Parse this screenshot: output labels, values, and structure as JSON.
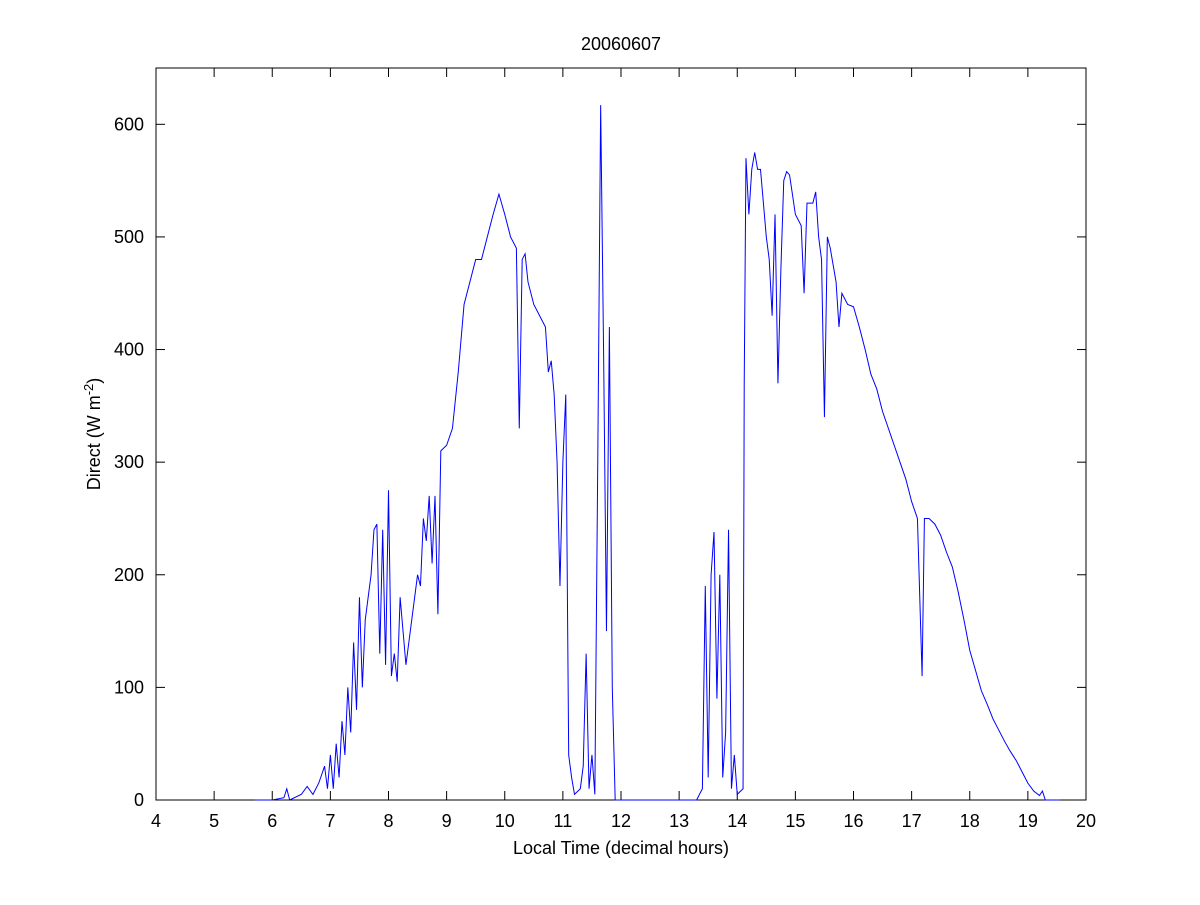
{
  "chart_data": {
    "type": "line",
    "title": "20060607",
    "xlabel": "Local Time (decimal hours)",
    "ylabel": "Direct (W m",
    "ylabel_sup": "-2",
    "ylabel_end": ")",
    "xlim": [
      4,
      20
    ],
    "xticks": [
      4,
      5,
      6,
      7,
      8,
      9,
      10,
      11,
      12,
      13,
      14,
      15,
      16,
      17,
      18,
      19,
      20
    ],
    "ylim": [
      0,
      650
    ],
    "yticks": [
      0,
      100,
      200,
      300,
      400,
      500,
      600
    ],
    "grid": false,
    "series": [
      {
        "name": "Direct",
        "color": "#0000ff",
        "x": [
          5.7,
          6.0,
          6.2,
          6.25,
          6.3,
          6.5,
          6.6,
          6.7,
          6.8,
          6.9,
          6.95,
          7.0,
          7.05,
          7.1,
          7.15,
          7.2,
          7.25,
          7.3,
          7.35,
          7.4,
          7.45,
          7.5,
          7.55,
          7.6,
          7.7,
          7.75,
          7.8,
          7.85,
          7.9,
          7.95,
          8.0,
          8.05,
          8.1,
          8.15,
          8.2,
          8.3,
          8.4,
          8.5,
          8.55,
          8.6,
          8.65,
          8.7,
          8.75,
          8.8,
          8.85,
          8.9,
          9.0,
          9.1,
          9.2,
          9.3,
          9.4,
          9.5,
          9.6,
          9.7,
          9.8,
          9.9,
          10.0,
          10.1,
          10.2,
          10.25,
          10.3,
          10.35,
          10.4,
          10.5,
          10.6,
          10.7,
          10.75,
          10.8,
          10.85,
          10.9,
          10.95,
          11.0,
          11.05,
          11.1,
          11.15,
          11.2,
          11.3,
          11.35,
          11.4,
          11.45,
          11.5,
          11.55,
          11.6,
          11.65,
          11.7,
          11.75,
          11.8,
          11.85,
          11.9,
          12.0,
          13.0,
          13.3,
          13.4,
          13.45,
          13.5,
          13.55,
          13.6,
          13.65,
          13.7,
          13.75,
          13.8,
          13.85,
          13.9,
          13.95,
          14.0,
          14.1,
          14.12,
          14.15,
          14.2,
          14.25,
          14.3,
          14.35,
          14.4,
          14.5,
          14.55,
          14.6,
          14.65,
          14.7,
          14.75,
          14.8,
          14.85,
          14.9,
          15.0,
          15.1,
          15.15,
          15.2,
          15.3,
          15.35,
          15.4,
          15.45,
          15.5,
          15.55,
          15.6,
          15.7,
          15.75,
          15.8,
          15.9,
          16.0,
          16.1,
          16.2,
          16.3,
          16.4,
          16.5,
          16.6,
          16.7,
          16.8,
          16.9,
          17.0,
          17.1,
          17.18,
          17.22,
          17.3,
          17.4,
          17.5,
          17.6,
          17.7,
          17.8,
          17.9,
          18.0,
          18.1,
          18.2,
          18.3,
          18.4,
          18.5,
          18.6,
          18.7,
          18.8,
          18.9,
          19.0,
          19.1,
          19.2,
          19.25,
          19.3,
          19.55
        ],
        "values": [
          0,
          0,
          2,
          10,
          0,
          5,
          12,
          5,
          15,
          30,
          10,
          40,
          10,
          50,
          20,
          70,
          40,
          100,
          60,
          140,
          80,
          180,
          100,
          160,
          200,
          240,
          245,
          130,
          240,
          120,
          275,
          110,
          130,
          105,
          180,
          120,
          160,
          200,
          190,
          250,
          230,
          270,
          210,
          270,
          165,
          310,
          315,
          330,
          380,
          440,
          460,
          480,
          480,
          500,
          520,
          538,
          520,
          500,
          490,
          330,
          480,
          485,
          460,
          440,
          430,
          420,
          380,
          390,
          360,
          300,
          190,
          300,
          360,
          40,
          20,
          5,
          10,
          30,
          130,
          10,
          40,
          5,
          300,
          617,
          400,
          150,
          420,
          100,
          0,
          0,
          0,
          0,
          10,
          190,
          20,
          200,
          238,
          90,
          200,
          20,
          60,
          240,
          10,
          40,
          5,
          10,
          370,
          570,
          520,
          560,
          575,
          560,
          560,
          500,
          480,
          430,
          520,
          370,
          470,
          550,
          558,
          555,
          520,
          510,
          450,
          530,
          530,
          540,
          500,
          480,
          340,
          500,
          490,
          460,
          420,
          450,
          440,
          438,
          420,
          400,
          378,
          365,
          345,
          330,
          315,
          300,
          285,
          265,
          250,
          110,
          250,
          250,
          245,
          235,
          220,
          207,
          185,
          160,
          133,
          115,
          97,
          85,
          72,
          62,
          52,
          43,
          35,
          25,
          15,
          8,
          4,
          8,
          0,
          0
        ]
      }
    ]
  }
}
